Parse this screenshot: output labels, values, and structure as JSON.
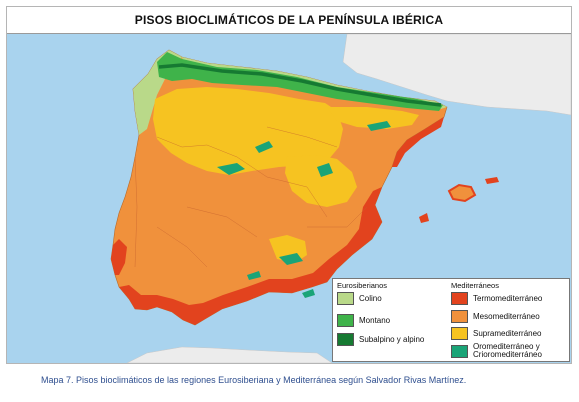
{
  "title": "PISOS BIOCLIMÁTICOS DE LA PENÍNSULA IBÉRICA",
  "colors": {
    "sea": "#a9d3ee",
    "neighbor_land": "#ececec",
    "colino": "#b9d989",
    "montano": "#3fb34a",
    "subalpino_alpino": "#167a32",
    "termomediterraneo": "#e2431e",
    "mesomediterraneo": "#f0913c",
    "supramediterraneo": "#f6c321",
    "oromediterraneo": "#1aa477"
  },
  "legend": {
    "eurosiberian_heading": "Eurosiberianos",
    "mediterranean_heading": "Mediterráneos",
    "eurosiberian_items": [
      {
        "label": "Colino",
        "color": "#b9d989"
      },
      {
        "label": "Montano",
        "color": "#3fb34a"
      },
      {
        "label": "Subalpino y alpino",
        "color": "#167a32"
      }
    ],
    "mediterranean_items": [
      {
        "label": "Termomediterráneo",
        "color": "#e2431e"
      },
      {
        "label": "Mesomediterráneo",
        "color": "#f0913c"
      },
      {
        "label": "Supramediterráneo",
        "color": "#f6c321"
      },
      {
        "label": "Oromediterráneo y",
        "label_line2": "Crioromediterráneo",
        "color": "#1aa477"
      }
    ]
  },
  "caption": "Mapa 7. Pisos bioclimáticos de las regiones Eurosiberiana y Mediterránea según Salvador Rivas Martínez."
}
